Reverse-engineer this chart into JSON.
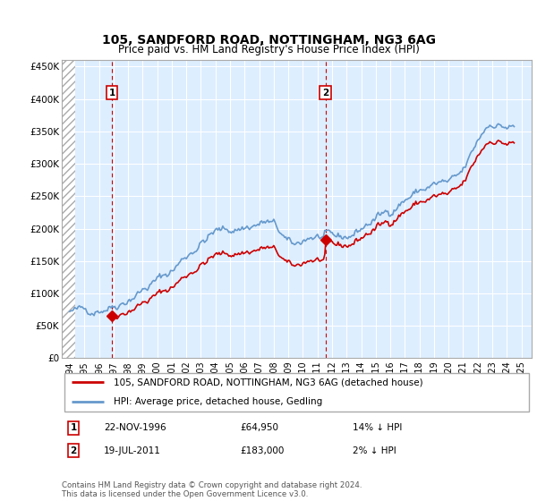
{
  "title": "105, SANDFORD ROAD, NOTTINGHAM, NG3 6AG",
  "subtitle": "Price paid vs. HM Land Registry's House Price Index (HPI)",
  "legend_line1": "105, SANDFORD ROAD, NOTTINGHAM, NG3 6AG (detached house)",
  "legend_line2": "HPI: Average price, detached house, Gedling",
  "footnote": "Contains HM Land Registry data © Crown copyright and database right 2024.\nThis data is licensed under the Open Government Licence v3.0.",
  "annotation1_date": "22-NOV-1996",
  "annotation1_price": "£64,950",
  "annotation1_hpi": "14% ↓ HPI",
  "annotation2_date": "19-JUL-2011",
  "annotation2_price": "£183,000",
  "annotation2_hpi": "2% ↓ HPI",
  "price_line_color": "#cc0000",
  "hpi_line_color": "#6699cc",
  "background_color": "#ddeeff",
  "grid_color": "#ffffff",
  "annotation_box_color": "#cc0000",
  "ymin": 0,
  "ymax": 460000,
  "yticks": [
    0,
    50000,
    100000,
    150000,
    200000,
    250000,
    300000,
    350000,
    400000,
    450000
  ],
  "ytick_labels": [
    "£0",
    "£50K",
    "£100K",
    "£150K",
    "£200K",
    "£250K",
    "£300K",
    "£350K",
    "£400K",
    "£450K"
  ],
  "xticks": [
    1994,
    1995,
    1996,
    1997,
    1998,
    1999,
    2000,
    2001,
    2002,
    2003,
    2004,
    2005,
    2006,
    2007,
    2008,
    2009,
    2010,
    2011,
    2012,
    2013,
    2014,
    2015,
    2016,
    2017,
    2018,
    2019,
    2020,
    2021,
    2022,
    2023,
    2024,
    2025
  ],
  "sale1_x": 1996.9,
  "sale1_y": 64950,
  "sale2_x": 2011.55,
  "sale2_y": 183000
}
